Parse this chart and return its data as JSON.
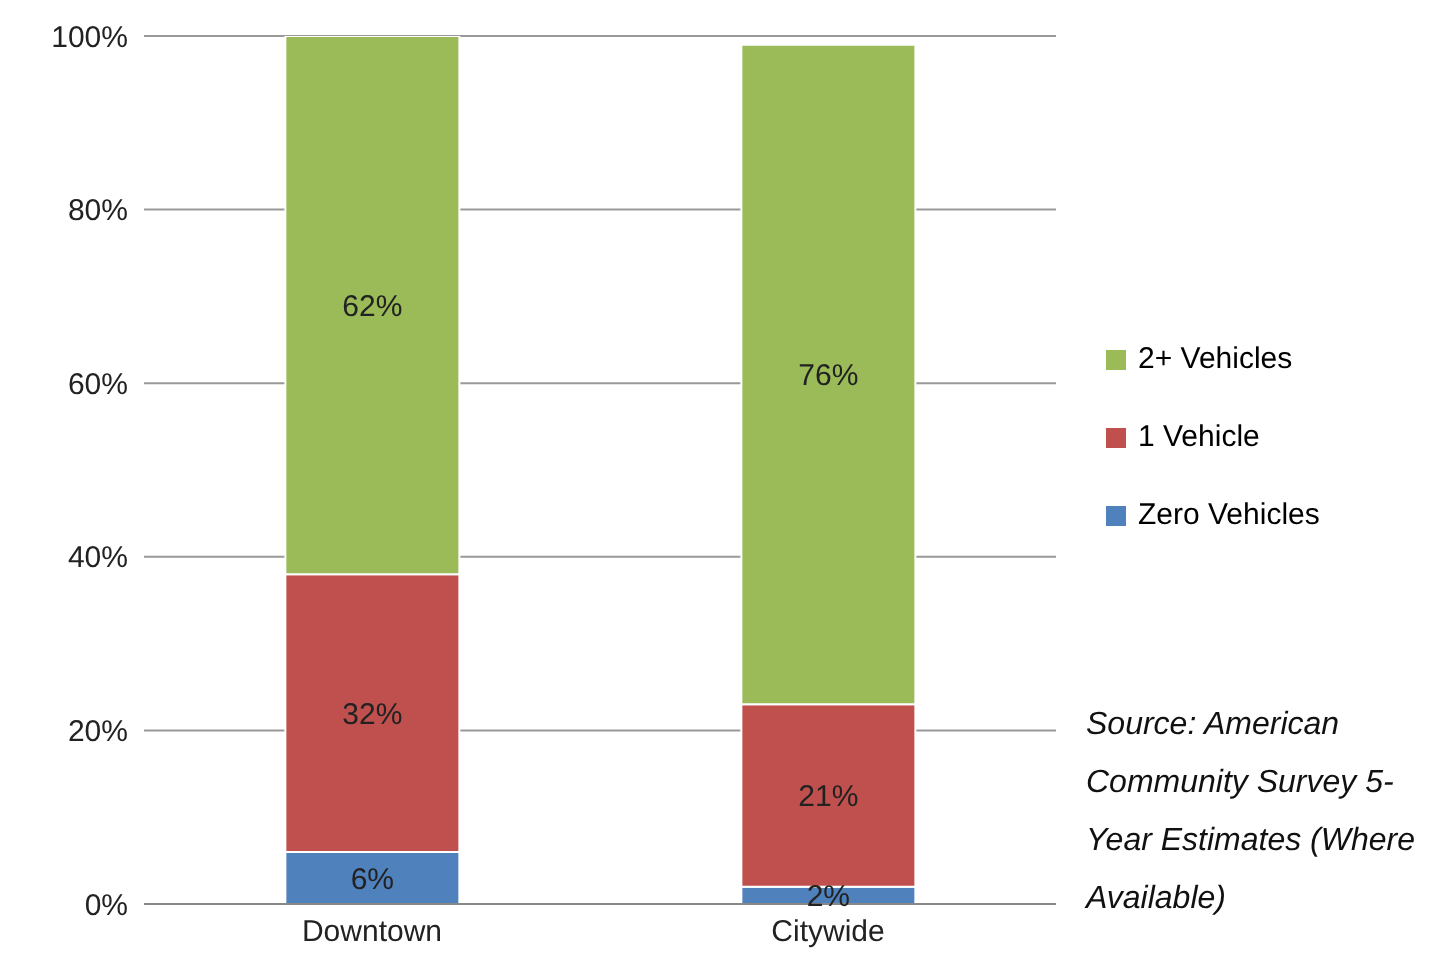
{
  "chart_data": {
    "type": "bar",
    "stacked": true,
    "categories": [
      "Downtown",
      "Citywide"
    ],
    "series": [
      {
        "name": "Zero Vehicles",
        "color": "#4f81bd",
        "values": [
          6,
          2
        ],
        "value_labels": [
          "6%",
          "2%"
        ]
      },
      {
        "name": "1 Vehicle",
        "color": "#c0504d",
        "values": [
          32,
          21
        ],
        "value_labels": [
          "32%",
          "21%"
        ]
      },
      {
        "name": "2+ Vehicles",
        "color": "#9bbb59",
        "values": [
          62,
          76
        ],
        "value_labels": [
          "62%",
          "76%"
        ]
      }
    ],
    "ylim": [
      0,
      100
    ],
    "yticks": [
      {
        "value": 0,
        "label": "0%"
      },
      {
        "value": 20,
        "label": "20%"
      },
      {
        "value": 40,
        "label": "40%"
      },
      {
        "value": 60,
        "label": "60%"
      },
      {
        "value": 80,
        "label": "80%"
      },
      {
        "value": 100,
        "label": "100%"
      }
    ],
    "grid": "y",
    "legend": "right",
    "annotations": [
      "Source: American Community Survey 5-Year Estimates (Where Available)"
    ]
  }
}
